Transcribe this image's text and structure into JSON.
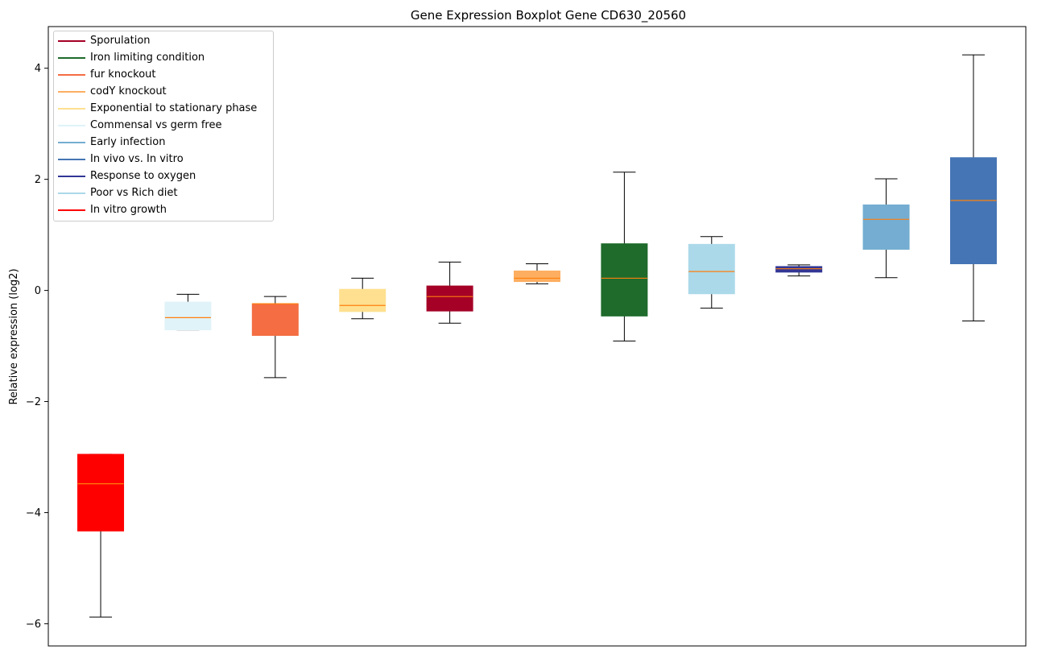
{
  "chart_data": {
    "type": "boxplot",
    "title": "Gene Expression Boxplot Gene CD630_20560",
    "ylabel": "Relative expression (log2)",
    "xlabel": "",
    "ylim": [
      -6.4,
      4.75
    ],
    "yticks": [
      -6,
      -4,
      -2,
      0,
      2,
      4
    ],
    "grid": false,
    "legend_position": "top-left",
    "median_color": "#ff7f0e",
    "legend": [
      {
        "label": "Sporulation",
        "color": "#a50026"
      },
      {
        "label": "Iron limiting condition",
        "color": "#1e6b2c"
      },
      {
        "label": "fur knockout",
        "color": "#f46d43"
      },
      {
        "label": "codY knockout",
        "color": "#fdae61"
      },
      {
        "label": "Exponential to stationary phase",
        "color": "#fee090"
      },
      {
        "label": "Commensal vs germ free",
        "color": "#e0f3f8"
      },
      {
        "label": "Early infection",
        "color": "#74add1"
      },
      {
        "label": "In vivo vs. In vitro",
        "color": "#4575b4"
      },
      {
        "label": "Response to oxygen",
        "color": "#313695"
      },
      {
        "label": "Poor vs Rich diet",
        "color": "#abd9e9"
      },
      {
        "label": "In vitro growth",
        "color": "#ff0000"
      }
    ],
    "boxes": [
      {
        "series": "In vitro growth",
        "color": "#ff0000",
        "whisker_low": -5.88,
        "q1": -4.33,
        "median": -3.48,
        "q3": -2.95,
        "whisker_high": -2.95
      },
      {
        "series": "Commensal vs germ free",
        "color": "#e0f3f8",
        "whisker_low": -0.71,
        "q1": -0.71,
        "median": -0.49,
        "q3": -0.21,
        "whisker_high": -0.07
      },
      {
        "series": "fur knockout",
        "color": "#f46d43",
        "whisker_low": -1.57,
        "q1": -0.81,
        "median": -0.24,
        "q3": -0.24,
        "whisker_high": -0.11
      },
      {
        "series": "Exponential to stationary phase",
        "color": "#fee090",
        "whisker_low": -0.51,
        "q1": -0.38,
        "median": -0.27,
        "q3": 0.02,
        "whisker_high": 0.22
      },
      {
        "series": "Sporulation",
        "color": "#a50026",
        "whisker_low": -0.59,
        "q1": -0.37,
        "median": -0.11,
        "q3": 0.08,
        "whisker_high": 0.51
      },
      {
        "series": "codY knockout",
        "color": "#fdae61",
        "whisker_low": 0.12,
        "q1": 0.16,
        "median": 0.22,
        "q3": 0.35,
        "whisker_high": 0.48
      },
      {
        "series": "Iron limiting condition",
        "color": "#1e6b2c",
        "whisker_low": -0.91,
        "q1": -0.46,
        "median": 0.22,
        "q3": 0.84,
        "whisker_high": 2.13
      },
      {
        "series": "Poor vs Rich diet",
        "color": "#abd9e9",
        "whisker_low": -0.32,
        "q1": -0.06,
        "median": 0.34,
        "q3": 0.83,
        "whisker_high": 0.97
      },
      {
        "series": "Response to oxygen",
        "color": "#313695",
        "whisker_low": 0.26,
        "q1": 0.33,
        "median": 0.39,
        "q3": 0.43,
        "whisker_high": 0.46
      },
      {
        "series": "Early infection",
        "color": "#74add1",
        "whisker_low": 0.23,
        "q1": 0.74,
        "median": 1.28,
        "q3": 1.54,
        "whisker_high": 2.01
      },
      {
        "series": "In vivo vs. In vitro",
        "color": "#4575b4",
        "whisker_low": -0.55,
        "q1": 0.48,
        "median": 1.62,
        "q3": 2.39,
        "whisker_high": 4.24
      }
    ]
  }
}
